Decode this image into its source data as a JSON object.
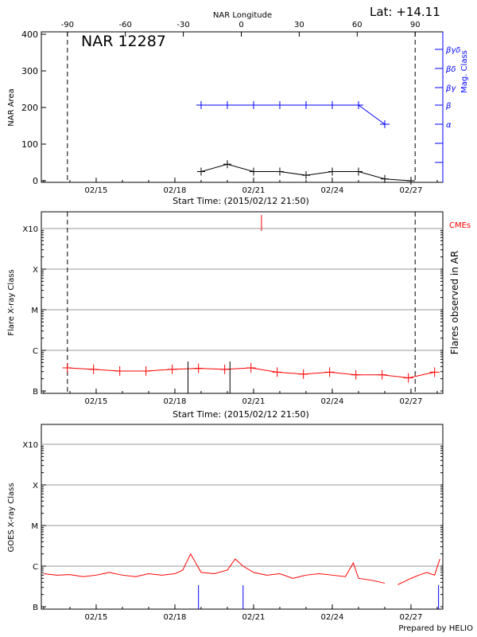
{
  "colors": {
    "black": "#000000",
    "blue": "#0000ff",
    "red": "#ff0000",
    "grid": "#999999"
  },
  "footer": "Prepared by HELIO",
  "chart_data": [
    {
      "type": "line",
      "title": "NAR 12287",
      "lat_label": "Lat: +14.11",
      "top_axis_label": "NAR Longitude",
      "top_ticks": [
        "-90",
        "-60",
        "-30",
        "0",
        "30",
        "60",
        "90"
      ],
      "xlabel": "Start Time: (2015/02/12 21:50)",
      "x_ticks": [
        "02/15",
        "02/18",
        "02/21",
        "02/24",
        "02/27"
      ],
      "ylabel": "NAR Area",
      "ylim": [
        0,
        400
      ],
      "y_ticks": [
        "0",
        "100",
        "200",
        "300",
        "400"
      ],
      "y2label": "Mag. Class",
      "y2_ticks": [
        "α",
        "β",
        "βγ",
        "βδ",
        "βγδ"
      ],
      "limb_longitudes": [
        -90,
        90
      ],
      "series": [
        {
          "name": "NAR Area",
          "color": "#000000",
          "x_day": [
            19,
            20,
            21,
            22,
            23,
            24,
            25,
            26,
            27
          ],
          "values": [
            25,
            45,
            25,
            25,
            15,
            25,
            25,
            5,
            0
          ]
        },
        {
          "name": "Mag. Class",
          "color": "#0000ff",
          "x_day": [
            19,
            20,
            21,
            22,
            23,
            24,
            25,
            26
          ],
          "values": [
            "β",
            "β",
            "β",
            "β",
            "β",
            "β",
            "β",
            "α"
          ]
        }
      ]
    },
    {
      "type": "line",
      "xlabel": "Start Time: (2015/02/12 21:50)",
      "x_ticks": [
        "02/15",
        "02/18",
        "02/21",
        "02/24",
        "02/27"
      ],
      "ylabel": "Flare X-ray Class",
      "y_ticks": [
        "B",
        "C",
        "M",
        "X",
        "X10"
      ],
      "y2label": "Flares observed in AR",
      "cme_label": "CMEs",
      "series": [
        {
          "color": "#ff0000",
          "x_day": [
            13.9,
            14.9,
            15.9,
            16.9,
            17.9,
            18.9,
            19.9,
            20.9,
            21.9,
            22.9,
            23.9,
            24.9,
            25.9,
            26.9,
            27.9
          ],
          "values": [
            "B3.7",
            "B3.4",
            "B3.1",
            "B3.1",
            "B3.4",
            "B3.6",
            "B3.4",
            "B3.7",
            "B2.9",
            "B2.6",
            "B2.9",
            "B2.5",
            "B2.5",
            "B2.1",
            "B2.9"
          ]
        }
      ],
      "flare_markers_day": [
        18.5,
        20.1
      ],
      "cme_day": [
        21.3
      ]
    },
    {
      "type": "line",
      "xlabel": "",
      "x_ticks": [
        "02/15",
        "02/18",
        "02/21",
        "02/24",
        "02/27"
      ],
      "ylabel": "GOES X-ray Class",
      "y_ticks": [
        "B",
        "C",
        "M",
        "X",
        "X10"
      ],
      "series": [
        {
          "color": "#ff0000",
          "x_day": [
            13,
            13.5,
            14,
            14.5,
            15,
            15.5,
            16,
            16.5,
            17,
            17.5,
            18,
            18.3,
            18.6,
            19,
            19.5,
            20,
            20.3,
            20.6,
            21,
            21.5,
            22,
            22.5,
            23,
            23.5,
            24,
            24.5,
            24.8,
            25,
            25.5,
            26,
            26.2,
            26.5,
            27,
            27.3,
            27.6,
            27.9,
            28.1
          ],
          "values": [
            6.5e-07,
            6e-07,
            6.2e-07,
            5.5e-07,
            6e-07,
            7e-07,
            6e-07,
            5.5e-07,
            6.5e-07,
            6e-07,
            6.5e-07,
            8e-07,
            2e-06,
            7e-07,
            6.5e-07,
            8e-07,
            1.5e-06,
            1e-06,
            7e-07,
            6e-07,
            6.5e-07,
            5e-07,
            6e-07,
            6.5e-07,
            6e-07,
            5.5e-07,
            1.2e-06,
            5e-07,
            4.5e-07,
            3.8e-07,
            null,
            3.5e-07,
            5e-07,
            6e-07,
            7e-07,
            6e-07,
            1.5e-06
          ]
        }
      ],
      "flare_markers_day": [
        18.9,
        20.6,
        28.05
      ]
    }
  ]
}
